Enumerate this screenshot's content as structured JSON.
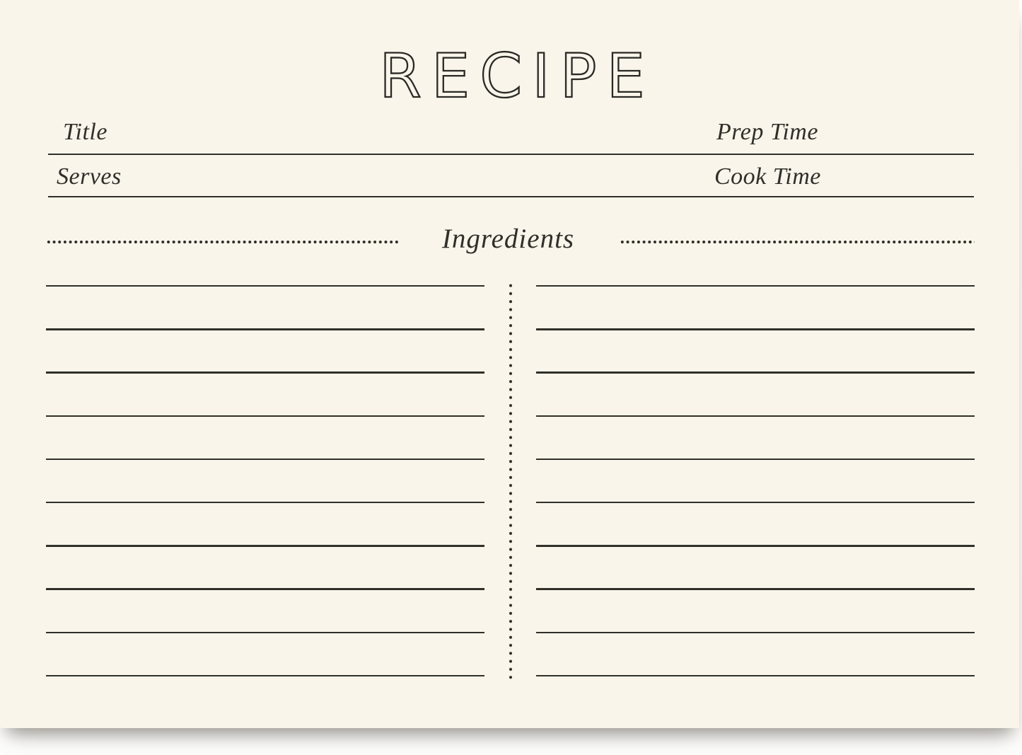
{
  "card": {
    "title": "RECIPE",
    "background_color": "#f9f5ea",
    "ink_color": "#312f2a"
  },
  "fields": {
    "title": {
      "label": "Title",
      "value": ""
    },
    "prep_time": {
      "label": "Prep Time",
      "value": ""
    },
    "serves": {
      "label": "Serves",
      "value": ""
    },
    "cook_time": {
      "label": "Cook Time",
      "value": ""
    }
  },
  "ingredients": {
    "heading": "Ingredients",
    "columns": 2,
    "lines_per_column": 10
  }
}
